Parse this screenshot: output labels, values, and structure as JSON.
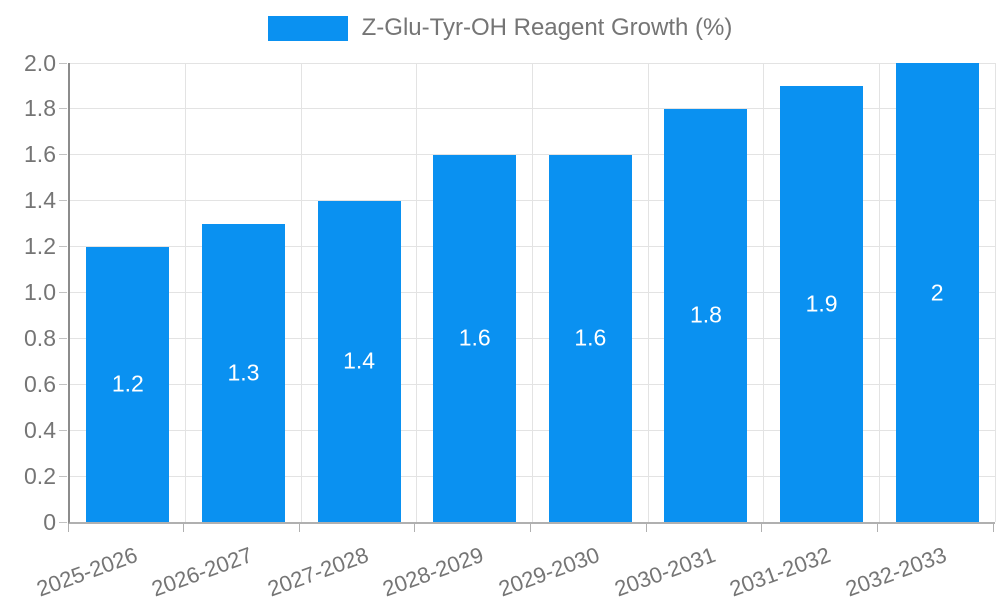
{
  "chart_data": {
    "type": "bar",
    "title": "Z-Glu-Tyr-OH Reagent Growth (%)",
    "categories": [
      "2025-2026",
      "2026-2027",
      "2027-2028",
      "2028-2029",
      "2029-2030",
      "2030-2031",
      "2031-2032",
      "2032-2033"
    ],
    "values": [
      1.2,
      1.3,
      1.4,
      1.6,
      1.6,
      1.8,
      1.9,
      2
    ],
    "bar_labels": [
      "1.2",
      "1.3",
      "1.4",
      "1.6",
      "1.6",
      "1.8",
      "1.9",
      "2"
    ],
    "xlabel": "",
    "ylabel": "",
    "ylim": [
      0,
      2.0
    ],
    "ytick_step": 0.2,
    "ytick_labels": [
      "0",
      "0.2",
      "0.4",
      "0.6",
      "0.8",
      "1.0",
      "1.2",
      "1.4",
      "1.6",
      "1.8",
      "2.0"
    ],
    "grid": true,
    "legend_position": "top-center",
    "colors": {
      "bar": "#0a91f1",
      "bar_value_text": "#ffffff",
      "axis_text": "#757575",
      "gridline": "#e3e3e3",
      "y_axis_line": "#8c8c8c",
      "x_axis_line": "#b0b0b0"
    }
  }
}
